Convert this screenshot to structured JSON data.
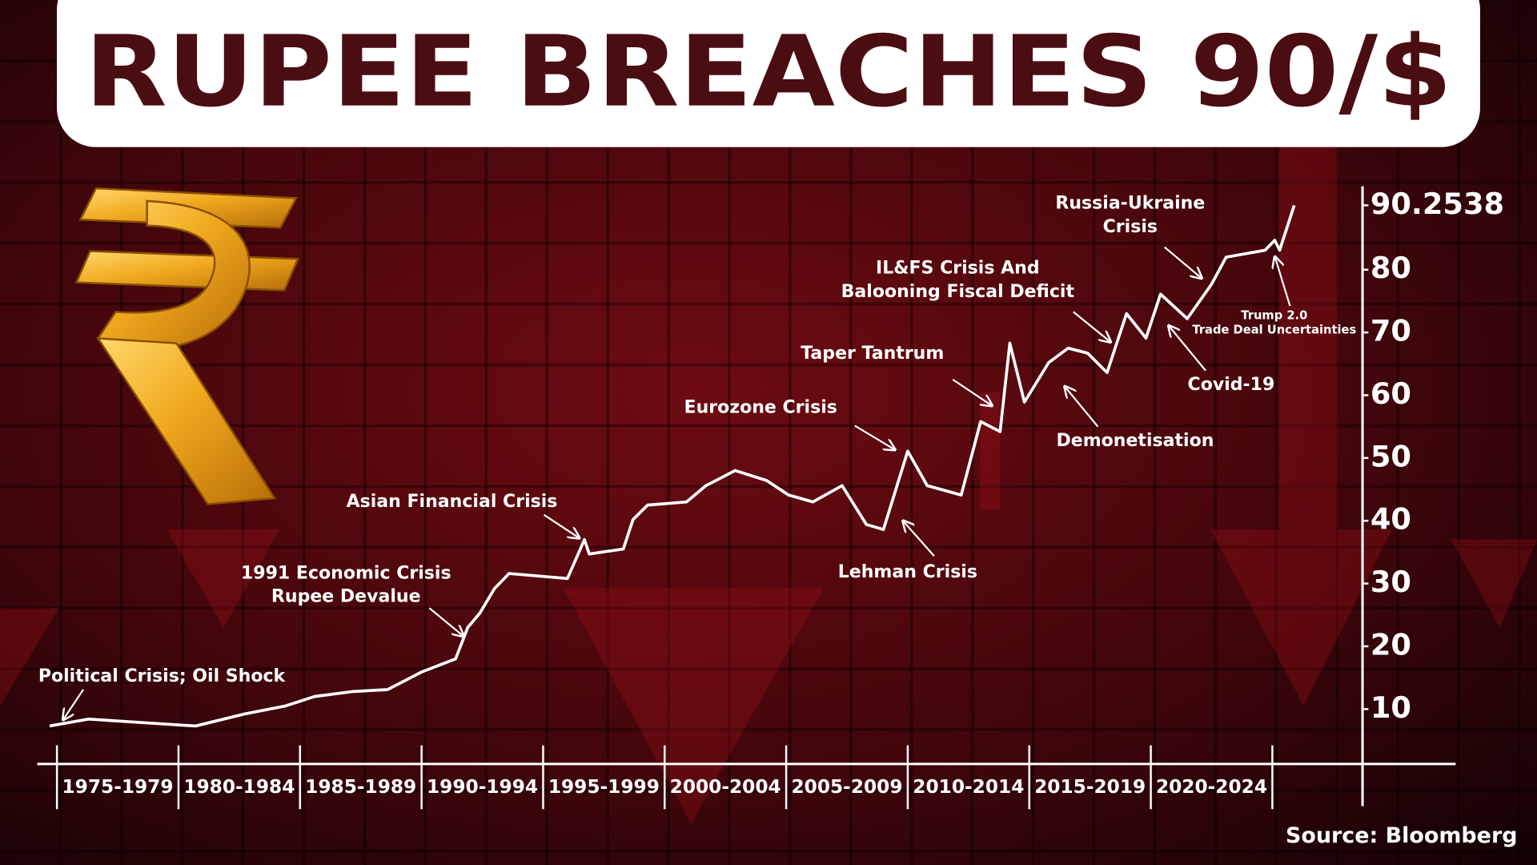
{
  "chart_data": {
    "type": "line",
    "title": "RUPEE BREACHES 90/$",
    "source": "Source: Bloomberg",
    "color": "#ffffff",
    "x": [
      1974.7,
      1976.3,
      1978.7,
      1980.7,
      1982.7,
      1984.4,
      1985.6,
      1987.2,
      1988.6,
      1990.0,
      1991.4,
      1991.9,
      1992.4,
      1993.0,
      1993.6,
      1996.0,
      1996.7,
      1996.9,
      1998.3,
      1998.7,
      1999.3,
      2000.9,
      2001.7,
      2002.9,
      2004.2,
      2005.1,
      2006.1,
      2007.3,
      2008.3,
      2009.0,
      2010.0,
      2010.8,
      2012.2,
      2013.0,
      2013.8,
      2014.2,
      2014.8,
      2015.8,
      2016.6,
      2017.4,
      2018.2,
      2019.0,
      2019.8,
      2020.4,
      2021.5,
      2022.5,
      2023.1,
      2024.7,
      2025.1,
      2025.3,
      2025.9
    ],
    "values": [
      7.3,
      8.4,
      7.8,
      7.3,
      9.2,
      10.5,
      12.0,
      12.8,
      13.1,
      15.9,
      18.0,
      23.0,
      25.3,
      29.2,
      31.6,
      30.8,
      37.0,
      34.7,
      35.5,
      40.2,
      42.5,
      43.0,
      45.6,
      48.0,
      46.4,
      44.1,
      43.0,
      45.6,
      39.4,
      38.6,
      51.1,
      45.6,
      44.1,
      55.8,
      54.2,
      68.3,
      58.9,
      65.2,
      67.5,
      66.7,
      63.6,
      73.0,
      69.1,
      76.1,
      72.2,
      77.7,
      82.0,
      83.1,
      84.7,
      83.1,
      90.2538
    ],
    "xlim": [
      1974.19,
      2032.54
    ],
    "xticks": [
      1975,
      1980,
      1985,
      1990,
      1995,
      2000,
      2005,
      2010,
      2015,
      2020,
      2025
    ],
    "period_labels": [
      "1975-1979",
      "1980-1984",
      "1985-1989",
      "1990-1994",
      "1995-1999",
      "2000-2004",
      "2005-2009",
      "2010-2014",
      "2015-2019",
      "2020-2024"
    ],
    "ylim": [
      1.25,
      93.28
    ],
    "yticks": [
      10,
      20,
      30,
      40,
      50,
      60,
      70,
      80,
      90.2538
    ],
    "annotations": [
      {
        "lines": [
          "Political Crisis; Oil Shock"
        ]
      },
      {
        "lines": [
          "1991 Economic Crisis",
          "Rupee Devalue"
        ]
      },
      {
        "lines": [
          "Asian Financial Crisis"
        ]
      },
      {
        "lines": [
          "Eurozone Crisis"
        ]
      },
      {
        "lines": [
          "Taper Tantrum"
        ]
      },
      {
        "lines": [
          "IL&FS Crisis And",
          "Balooning Fiscal Deficit"
        ]
      },
      {
        "lines": [
          "Russia-Ukraine",
          "Crisis"
        ]
      },
      {
        "lines": [
          "Trump 2.0",
          "Trade Deal Uncertainties"
        ]
      },
      {
        "lines": [
          "Covid-19"
        ]
      },
      {
        "lines": [
          "Demonetisation"
        ]
      },
      {
        "lines": [
          "Lehman Crisis"
        ]
      }
    ]
  }
}
